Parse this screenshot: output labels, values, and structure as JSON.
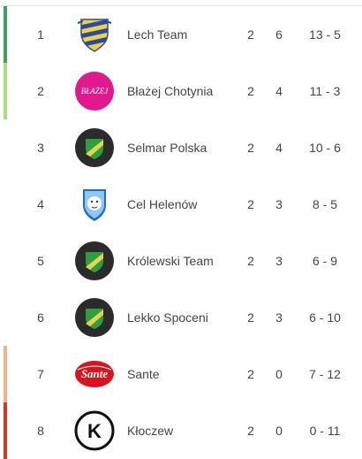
{
  "standings": {
    "rows": [
      {
        "position": "1",
        "team": "Lech Team",
        "played": "2",
        "points": "6",
        "score": "13 - 5",
        "logo": "shield-blue-yellow-icon",
        "indicator": "#3aa35a"
      },
      {
        "position": "2",
        "team": "Błażej Chotynia",
        "played": "2",
        "points": "4",
        "score": "11 - 3",
        "logo": "pink-circle-blazej-icon",
        "logo_text": "BŁAŻEJ",
        "indicator": "#a6e07e"
      },
      {
        "position": "3",
        "team": "Selmar Polska",
        "played": "2",
        "points": "4",
        "score": "10 - 6",
        "logo": "green-yellow-shield-icon",
        "indicator": ""
      },
      {
        "position": "4",
        "team": "Cel Helenów",
        "played": "2",
        "points": "3",
        "score": "8 - 5",
        "logo": "lion-crest-icon",
        "indicator": ""
      },
      {
        "position": "5",
        "team": "Królewski Team",
        "played": "2",
        "points": "3",
        "score": "6 - 9",
        "logo": "green-yellow-shield-icon",
        "indicator": ""
      },
      {
        "position": "6",
        "team": "Lekko Spoceni",
        "played": "2",
        "points": "3",
        "score": "6 - 10",
        "logo": "green-yellow-shield-icon",
        "indicator": ""
      },
      {
        "position": "7",
        "team": "Sante",
        "played": "2",
        "points": "0",
        "score": "7 - 12",
        "logo": "sante-logo-icon",
        "logo_text": "Sante",
        "indicator": "#f2b48a"
      },
      {
        "position": "8",
        "team": "Kłoczew",
        "played": "2",
        "points": "0",
        "score": "0 - 11",
        "logo": "k-logo-icon",
        "logo_text": "K",
        "indicator": "#d93030"
      }
    ]
  }
}
